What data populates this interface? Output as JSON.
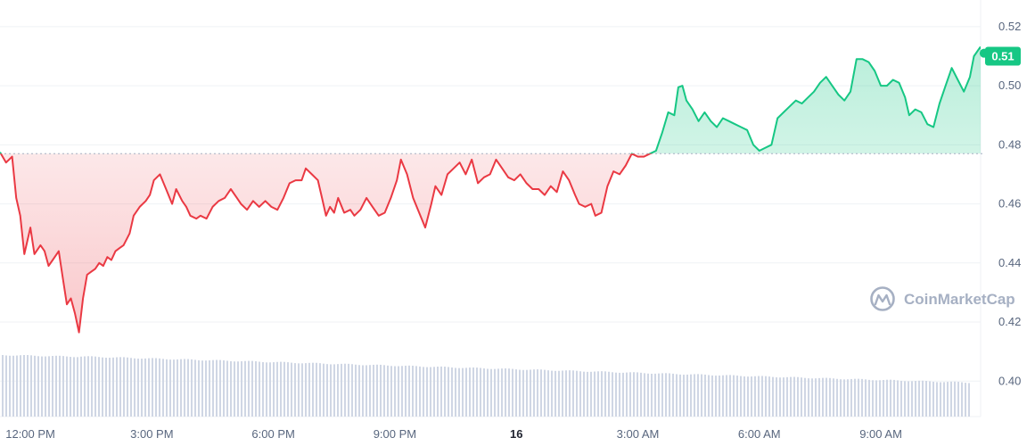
{
  "chart_data": {
    "type": "line",
    "baseline": 0.477,
    "ylim": [
      0.388,
      0.526
    ],
    "y_ticks": [
      "0.52",
      "0.50",
      "0.48",
      "0.46",
      "0.44",
      "0.42",
      "0.40"
    ],
    "x_ticks": [
      "12:00 PM",
      "3:00 PM",
      "6:00 PM",
      "9:00 PM",
      "16",
      "3:00 AM",
      "6:00 AM",
      "9:00 AM"
    ],
    "x_tick_bold": [
      false,
      false,
      false,
      false,
      true,
      false,
      false,
      false
    ],
    "x_tick_hours": [
      0,
      3,
      6,
      9,
      12,
      15,
      18,
      21
    ],
    "x_range_hours": [
      -0.75,
      23.2
    ],
    "current_price": "0.51",
    "series": [
      {
        "values": [
          [
            -0.75,
            0.4775
          ],
          [
            -0.6,
            0.474
          ],
          [
            -0.45,
            0.476
          ],
          [
            -0.35,
            0.462
          ],
          [
            -0.25,
            0.456
          ],
          [
            -0.15,
            0.443
          ],
          [
            0.0,
            0.452
          ],
          [
            0.1,
            0.443
          ],
          [
            0.25,
            0.446
          ],
          [
            0.35,
            0.444
          ],
          [
            0.45,
            0.439
          ],
          [
            0.55,
            0.441
          ],
          [
            0.7,
            0.444
          ],
          [
            0.8,
            0.435
          ],
          [
            0.9,
            0.426
          ],
          [
            1.0,
            0.428
          ],
          [
            1.1,
            0.423
          ],
          [
            1.2,
            0.4165
          ],
          [
            1.3,
            0.428
          ],
          [
            1.4,
            0.436
          ],
          [
            1.5,
            0.437
          ],
          [
            1.6,
            0.438
          ],
          [
            1.7,
            0.44
          ],
          [
            1.8,
            0.439
          ],
          [
            1.9,
            0.442
          ],
          [
            2.0,
            0.441
          ],
          [
            2.1,
            0.444
          ],
          [
            2.2,
            0.445
          ],
          [
            2.3,
            0.446
          ],
          [
            2.45,
            0.45
          ],
          [
            2.55,
            0.456
          ],
          [
            2.7,
            0.459
          ],
          [
            2.85,
            0.461
          ],
          [
            2.95,
            0.463
          ],
          [
            3.05,
            0.468
          ],
          [
            3.2,
            0.47
          ],
          [
            3.35,
            0.465
          ],
          [
            3.5,
            0.46
          ],
          [
            3.6,
            0.465
          ],
          [
            3.75,
            0.461
          ],
          [
            3.85,
            0.459
          ],
          [
            3.95,
            0.456
          ],
          [
            4.1,
            0.455
          ],
          [
            4.2,
            0.456
          ],
          [
            4.35,
            0.455
          ],
          [
            4.5,
            0.459
          ],
          [
            4.65,
            0.461
          ],
          [
            4.8,
            0.462
          ],
          [
            4.95,
            0.465
          ],
          [
            5.1,
            0.462
          ],
          [
            5.2,
            0.46
          ],
          [
            5.35,
            0.458
          ],
          [
            5.5,
            0.461
          ],
          [
            5.65,
            0.459
          ],
          [
            5.8,
            0.461
          ],
          [
            5.95,
            0.459
          ],
          [
            6.1,
            0.458
          ],
          [
            6.25,
            0.462
          ],
          [
            6.4,
            0.467
          ],
          [
            6.55,
            0.468
          ],
          [
            6.7,
            0.468
          ],
          [
            6.8,
            0.472
          ],
          [
            6.95,
            0.47
          ],
          [
            7.1,
            0.468
          ],
          [
            7.2,
            0.462
          ],
          [
            7.3,
            0.456
          ],
          [
            7.4,
            0.459
          ],
          [
            7.5,
            0.457
          ],
          [
            7.6,
            0.462
          ],
          [
            7.75,
            0.457
          ],
          [
            7.9,
            0.458
          ],
          [
            8.0,
            0.456
          ],
          [
            8.15,
            0.458
          ],
          [
            8.3,
            0.462
          ],
          [
            8.45,
            0.459
          ],
          [
            8.6,
            0.456
          ],
          [
            8.75,
            0.457
          ],
          [
            8.9,
            0.462
          ],
          [
            9.05,
            0.468
          ],
          [
            9.15,
            0.475
          ],
          [
            9.3,
            0.47
          ],
          [
            9.45,
            0.462
          ],
          [
            9.6,
            0.457
          ],
          [
            9.75,
            0.452
          ],
          [
            9.9,
            0.46
          ],
          [
            10.0,
            0.466
          ],
          [
            10.15,
            0.463
          ],
          [
            10.3,
            0.47
          ],
          [
            10.45,
            0.472
          ],
          [
            10.6,
            0.474
          ],
          [
            10.75,
            0.47
          ],
          [
            10.9,
            0.475
          ],
          [
            11.05,
            0.467
          ],
          [
            11.2,
            0.469
          ],
          [
            11.35,
            0.47
          ],
          [
            11.5,
            0.475
          ],
          [
            11.65,
            0.472
          ],
          [
            11.8,
            0.469
          ],
          [
            11.95,
            0.468
          ],
          [
            12.1,
            0.47
          ],
          [
            12.25,
            0.467
          ],
          [
            12.4,
            0.465
          ],
          [
            12.55,
            0.465
          ],
          [
            12.7,
            0.463
          ],
          [
            12.85,
            0.466
          ],
          [
            13.0,
            0.464
          ],
          [
            13.15,
            0.471
          ],
          [
            13.3,
            0.468
          ],
          [
            13.45,
            0.463
          ],
          [
            13.55,
            0.46
          ],
          [
            13.7,
            0.459
          ],
          [
            13.85,
            0.46
          ],
          [
            13.95,
            0.456
          ],
          [
            14.1,
            0.457
          ],
          [
            14.25,
            0.466
          ],
          [
            14.4,
            0.471
          ],
          [
            14.55,
            0.47
          ],
          [
            14.7,
            0.473
          ],
          [
            14.85,
            0.477
          ],
          [
            15.0,
            0.476
          ],
          [
            15.15,
            0.476
          ],
          [
            15.3,
            0.477
          ],
          [
            15.45,
            0.478
          ],
          [
            15.6,
            0.484
          ],
          [
            15.75,
            0.491
          ],
          [
            15.9,
            0.49
          ],
          [
            16.0,
            0.4995
          ],
          [
            16.1,
            0.5
          ],
          [
            16.2,
            0.495
          ],
          [
            16.35,
            0.492
          ],
          [
            16.5,
            0.488
          ],
          [
            16.65,
            0.491
          ],
          [
            16.8,
            0.488
          ],
          [
            16.95,
            0.486
          ],
          [
            17.1,
            0.489
          ],
          [
            17.25,
            0.488
          ],
          [
            17.4,
            0.487
          ],
          [
            17.55,
            0.486
          ],
          [
            17.7,
            0.485
          ],
          [
            17.85,
            0.48
          ],
          [
            18.0,
            0.478
          ],
          [
            18.15,
            0.479
          ],
          [
            18.3,
            0.48
          ],
          [
            18.45,
            0.489
          ],
          [
            18.6,
            0.491
          ],
          [
            18.75,
            0.493
          ],
          [
            18.9,
            0.495
          ],
          [
            19.05,
            0.494
          ],
          [
            19.2,
            0.496
          ],
          [
            19.35,
            0.498
          ],
          [
            19.5,
            0.501
          ],
          [
            19.65,
            0.503
          ],
          [
            19.8,
            0.5
          ],
          [
            19.95,
            0.497
          ],
          [
            20.1,
            0.495
          ],
          [
            20.25,
            0.498
          ],
          [
            20.4,
            0.509
          ],
          [
            20.55,
            0.509
          ],
          [
            20.7,
            0.508
          ],
          [
            20.85,
            0.505
          ],
          [
            21.0,
            0.5
          ],
          [
            21.15,
            0.5
          ],
          [
            21.3,
            0.502
          ],
          [
            21.45,
            0.501
          ],
          [
            21.6,
            0.496
          ],
          [
            21.7,
            0.49
          ],
          [
            21.85,
            0.492
          ],
          [
            22.0,
            0.491
          ],
          [
            22.15,
            0.487
          ],
          [
            22.3,
            0.486
          ],
          [
            22.45,
            0.494
          ],
          [
            22.6,
            0.5
          ],
          [
            22.75,
            0.506
          ],
          [
            22.9,
            0.502
          ],
          [
            23.05,
            0.498
          ],
          [
            23.2,
            0.503
          ],
          [
            23.3,
            0.51
          ],
          [
            23.45,
            0.513
          ],
          [
            23.55,
            0.511
          ]
        ]
      }
    ],
    "colors": {
      "up": "#16c784",
      "down": "#ea3943",
      "volume": "#cfd6e4",
      "grid": "#eff2f5",
      "baseline": "#a6b0c3"
    }
  },
  "watermark": {
    "text": "CoinMarketCap",
    "icon": "coinmarketcap-logo-icon"
  }
}
